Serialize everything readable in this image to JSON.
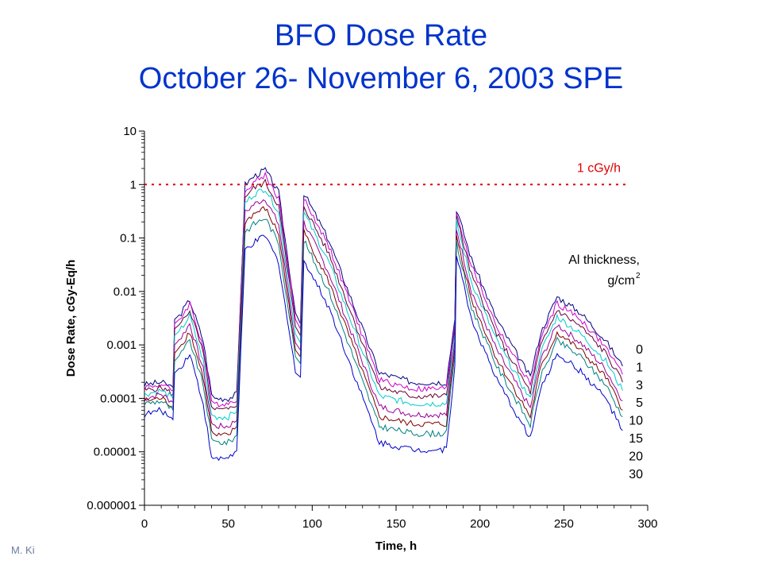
{
  "page": {
    "title_line1": "BFO Dose Rate",
    "title_line2": "October 26- November 6, 2003 SPE",
    "credit": "M. Ki"
  },
  "chart_data": {
    "type": "line",
    "title": "BFO Dose Rate October 26- November 6, 2003 SPE",
    "xlabel": "Time, h",
    "ylabel": "Dose Rate, cGy-Eq/h",
    "xlim": [
      0,
      300
    ],
    "ylim": [
      1e-06,
      10
    ],
    "yscale": "log",
    "x_ticks": [
      "0",
      "50",
      "100",
      "150",
      "200",
      "250",
      "300"
    ],
    "y_ticks": [
      "10",
      "1",
      "0.1",
      "0.01",
      "0.001",
      "0.0001",
      "0.00001",
      "0.000001"
    ],
    "threshold": {
      "value": 1,
      "label": "1 cGy/h",
      "color": "#e00000"
    },
    "legend_title_line1": "Al thickness,",
    "legend_title_line2": "g/cm",
    "legend_title_sup": "2",
    "legend_placement": "right",
    "grid": false,
    "x": [
      0,
      10,
      17,
      18,
      22,
      27,
      35,
      40,
      42,
      50,
      55,
      60,
      65,
      72,
      80,
      90,
      93,
      95,
      110,
      140,
      160,
      180,
      185,
      186,
      195,
      210,
      230,
      236,
      246,
      260,
      275,
      285
    ],
    "series": [
      {
        "name": "0",
        "color": "#000080",
        "values": [
          0.00018,
          0.0002,
          0.00016,
          0.003,
          0.004,
          0.007,
          0.0012,
          0.00012,
          0.0001,
          0.0001,
          0.00012,
          1.0,
          1.4,
          1.9,
          0.7,
          0.004,
          0.0025,
          0.7,
          0.09,
          0.0003,
          0.0002,
          0.0002,
          0.003,
          0.35,
          0.04,
          0.003,
          0.00025,
          0.0016,
          0.008,
          0.004,
          0.0012,
          0.0004
        ]
      },
      {
        "name": "1",
        "color": "#cc00cc",
        "values": [
          0.00016,
          0.00018,
          0.00014,
          0.0025,
          0.0033,
          0.006,
          0.0009,
          9e-05,
          8e-05,
          8e-05,
          0.0001,
          0.8,
          1.1,
          1.5,
          0.55,
          0.003,
          0.002,
          0.55,
          0.07,
          0.00022,
          0.00015,
          0.00015,
          0.0025,
          0.3,
          0.03,
          0.0022,
          0.00018,
          0.0012,
          0.006,
          0.003,
          0.0009,
          0.00028
        ]
      },
      {
        "name": "3",
        "color": "#660033",
        "values": [
          0.00014,
          0.00016,
          0.00012,
          0.002,
          0.0026,
          0.0045,
          0.0007,
          7e-05,
          6e-05,
          6e-05,
          8e-05,
          0.6,
          0.85,
          1.1,
          0.4,
          0.0022,
          0.0015,
          0.4,
          0.05,
          0.00016,
          0.00011,
          0.00011,
          0.002,
          0.25,
          0.02,
          0.0016,
          0.00013,
          0.0009,
          0.0045,
          0.0022,
          0.0007,
          0.0002
        ]
      },
      {
        "name": "5",
        "color": "#00cccc",
        "values": [
          0.00012,
          0.00014,
          0.0001,
          0.0015,
          0.002,
          0.0035,
          0.0005,
          5e-05,
          4.5e-05,
          4.5e-05,
          6e-05,
          0.45,
          0.65,
          0.85,
          0.3,
          0.0016,
          0.0011,
          0.3,
          0.035,
          0.00011,
          8e-05,
          8e-05,
          0.0016,
          0.2,
          0.015,
          0.0012,
          9.5e-05,
          0.0007,
          0.0034,
          0.0016,
          0.0005,
          0.00014
        ]
      },
      {
        "name": "10",
        "color": "#990099",
        "values": [
          0.0001,
          0.00012,
          8.5e-05,
          0.001,
          0.0014,
          0.0025,
          0.00035,
          3.5e-05,
          3e-05,
          3e-05,
          4e-05,
          0.3,
          0.42,
          0.55,
          0.18,
          0.0011,
          0.0008,
          0.2,
          0.022,
          7e-05,
          5e-05,
          5e-05,
          0.0012,
          0.15,
          0.01,
          0.0008,
          6.5e-05,
          0.0005,
          0.0024,
          0.0011,
          0.00035,
          9e-05
        ]
      },
      {
        "name": "15",
        "color": "#800000",
        "values": [
          9e-05,
          0.0001,
          7e-05,
          0.0007,
          0.001,
          0.0018,
          0.00025,
          2.5e-05,
          2e-05,
          2e-05,
          3e-05,
          0.2,
          0.28,
          0.36,
          0.12,
          0.0008,
          0.0006,
          0.13,
          0.015,
          4.5e-05,
          3.3e-05,
          3.3e-05,
          0.0009,
          0.11,
          0.007,
          0.00055,
          4.5e-05,
          0.00035,
          0.0017,
          0.0008,
          0.00025,
          6e-05
        ]
      },
      {
        "name": "20",
        "color": "#008080",
        "values": [
          8e-05,
          9e-05,
          6e-05,
          0.0005,
          0.0007,
          0.0012,
          0.00018,
          1.8e-05,
          1.5e-05,
          1.5e-05,
          2e-05,
          0.13,
          0.18,
          0.24,
          0.08,
          0.0006,
          0.00045,
          0.09,
          0.01,
          3e-05,
          2.2e-05,
          2.2e-05,
          0.0007,
          0.08,
          0.005,
          0.0004,
          3.2e-05,
          0.00025,
          0.0012,
          0.0006,
          0.00018,
          4.5e-05
        ]
      },
      {
        "name": "30",
        "color": "#0000cc",
        "values": [
          5e-05,
          6e-05,
          4e-05,
          0.0003,
          0.0004,
          0.0007,
          8e-05,
          8e-06,
          7e-06,
          8e-06,
          1e-05,
          0.06,
          0.08,
          0.11,
          0.035,
          0.0003,
          0.00025,
          0.04,
          0.005,
          1.5e-05,
          1.1e-05,
          1.1e-05,
          0.0004,
          0.05,
          0.003,
          0.00022,
          1.8e-05,
          0.00014,
          0.0007,
          0.00032,
          0.0001,
          2.5e-05
        ]
      }
    ]
  }
}
